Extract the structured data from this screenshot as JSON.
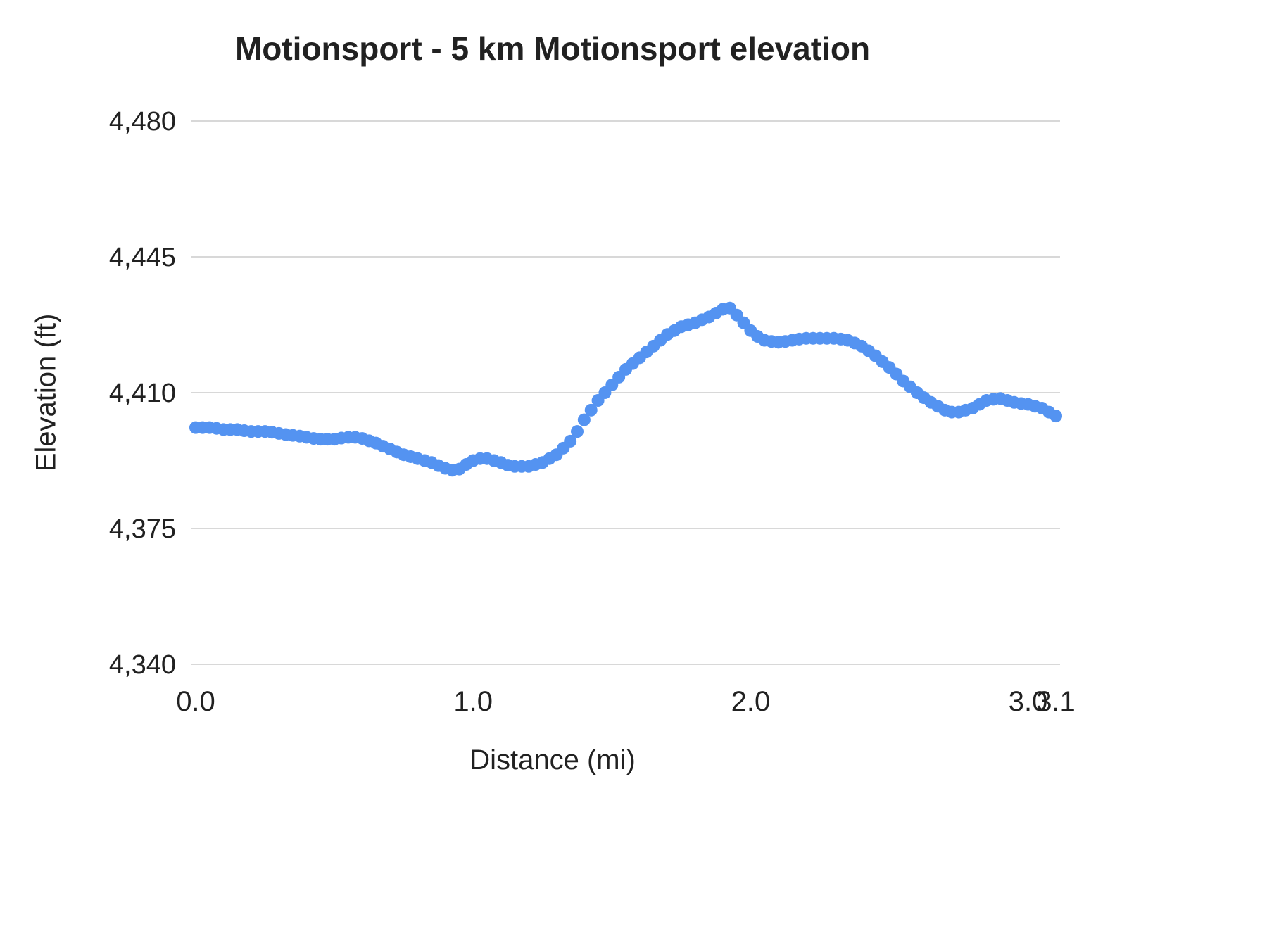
{
  "chart_data": {
    "type": "scatter",
    "title": "Motionsport - 5 km Motionsport elevation",
    "xlabel": "Distance (mi)",
    "ylabel": "Elevation (ft)",
    "x_range": [
      0.0,
      3.1
    ],
    "y_range": [
      4340,
      4480
    ],
    "grid": "horizontal",
    "legend": "none",
    "point_color": "#5493f1",
    "grid_color": "#d8d8d8",
    "text_color": "#212121",
    "y_ticks": [
      {
        "value": 4340,
        "label": "4,340"
      },
      {
        "value": 4375,
        "label": "4,375"
      },
      {
        "value": 4410,
        "label": "4,410"
      },
      {
        "value": 4445,
        "label": "4,445"
      },
      {
        "value": 4480,
        "label": "4,480"
      }
    ],
    "x_ticks": [
      {
        "value": 0.0,
        "label": "0.0"
      },
      {
        "value": 1.0,
        "label": "1.0"
      },
      {
        "value": 2.0,
        "label": "2.0"
      },
      {
        "value": 3.0,
        "label": "3.0"
      },
      {
        "value": 3.1,
        "label": "3.1"
      }
    ],
    "series": [
      {
        "name": "elevation",
        "points": [
          [
            0.0,
            4401.0
          ],
          [
            0.025,
            4401.0
          ],
          [
            0.05,
            4401.0
          ],
          [
            0.075,
            4400.8
          ],
          [
            0.1,
            4400.5
          ],
          [
            0.125,
            4400.5
          ],
          [
            0.15,
            4400.5
          ],
          [
            0.175,
            4400.2
          ],
          [
            0.2,
            4400.0
          ],
          [
            0.225,
            4400.0
          ],
          [
            0.25,
            4400.0
          ],
          [
            0.275,
            4399.8
          ],
          [
            0.3,
            4399.5
          ],
          [
            0.325,
            4399.2
          ],
          [
            0.35,
            4399.0
          ],
          [
            0.375,
            4398.8
          ],
          [
            0.4,
            4398.5
          ],
          [
            0.425,
            4398.2
          ],
          [
            0.45,
            4398.0
          ],
          [
            0.475,
            4398.0
          ],
          [
            0.5,
            4398.0
          ],
          [
            0.525,
            4398.3
          ],
          [
            0.55,
            4398.5
          ],
          [
            0.575,
            4398.5
          ],
          [
            0.6,
            4398.2
          ],
          [
            0.625,
            4397.6
          ],
          [
            0.65,
            4397.0
          ],
          [
            0.675,
            4396.2
          ],
          [
            0.7,
            4395.5
          ],
          [
            0.725,
            4394.7
          ],
          [
            0.75,
            4394.0
          ],
          [
            0.775,
            4393.5
          ],
          [
            0.8,
            4393.0
          ],
          [
            0.825,
            4392.5
          ],
          [
            0.85,
            4392.0
          ],
          [
            0.875,
            4391.2
          ],
          [
            0.9,
            4390.5
          ],
          [
            0.925,
            4390.0
          ],
          [
            0.95,
            4390.3
          ],
          [
            0.975,
            4391.5
          ],
          [
            1.0,
            4392.5
          ],
          [
            1.025,
            4393.0
          ],
          [
            1.05,
            4393.0
          ],
          [
            1.075,
            4392.5
          ],
          [
            1.1,
            4392.0
          ],
          [
            1.125,
            4391.3
          ],
          [
            1.15,
            4391.0
          ],
          [
            1.175,
            4391.0
          ],
          [
            1.2,
            4391.0
          ],
          [
            1.225,
            4391.5
          ],
          [
            1.25,
            4392.0
          ],
          [
            1.275,
            4393.0
          ],
          [
            1.3,
            4394.0
          ],
          [
            1.325,
            4395.7
          ],
          [
            1.35,
            4397.5
          ],
          [
            1.375,
            4400.0
          ],
          [
            1.4,
            4403.0
          ],
          [
            1.425,
            4405.5
          ],
          [
            1.45,
            4408.0
          ],
          [
            1.475,
            4410.0
          ],
          [
            1.5,
            4412.0
          ],
          [
            1.525,
            4414.0
          ],
          [
            1.55,
            4416.0
          ],
          [
            1.575,
            4417.5
          ],
          [
            1.6,
            4419.0
          ],
          [
            1.625,
            4420.5
          ],
          [
            1.65,
            4422.0
          ],
          [
            1.675,
            4423.5
          ],
          [
            1.7,
            4425.0
          ],
          [
            1.725,
            4426.0
          ],
          [
            1.75,
            4427.0
          ],
          [
            1.775,
            4427.5
          ],
          [
            1.8,
            4428.0
          ],
          [
            1.825,
            4428.8
          ],
          [
            1.85,
            4429.5
          ],
          [
            1.875,
            4430.5
          ],
          [
            1.9,
            4431.5
          ],
          [
            1.925,
            4431.8
          ],
          [
            1.95,
            4430.0
          ],
          [
            1.975,
            4428.0
          ],
          [
            2.0,
            4426.0
          ],
          [
            2.025,
            4424.5
          ],
          [
            2.05,
            4423.5
          ],
          [
            2.075,
            4423.2
          ],
          [
            2.1,
            4423.0
          ],
          [
            2.125,
            4423.2
          ],
          [
            2.15,
            4423.5
          ],
          [
            2.175,
            4423.8
          ],
          [
            2.2,
            4424.0
          ],
          [
            2.225,
            4424.0
          ],
          [
            2.25,
            4424.0
          ],
          [
            2.275,
            4424.0
          ],
          [
            2.3,
            4424.0
          ],
          [
            2.325,
            4423.8
          ],
          [
            2.35,
            4423.5
          ],
          [
            2.375,
            4422.8
          ],
          [
            2.4,
            4422.0
          ],
          [
            2.425,
            4420.8
          ],
          [
            2.45,
            4419.5
          ],
          [
            2.475,
            4418.0
          ],
          [
            2.5,
            4416.5
          ],
          [
            2.525,
            4414.8
          ],
          [
            2.55,
            4413.0
          ],
          [
            2.575,
            4411.5
          ],
          [
            2.6,
            4410.0
          ],
          [
            2.625,
            4408.7
          ],
          [
            2.65,
            4407.5
          ],
          [
            2.675,
            4406.5
          ],
          [
            2.7,
            4405.5
          ],
          [
            2.725,
            4405.0
          ],
          [
            2.75,
            4405.0
          ],
          [
            2.775,
            4405.5
          ],
          [
            2.8,
            4406.0
          ],
          [
            2.825,
            4407.0
          ],
          [
            2.85,
            4408.0
          ],
          [
            2.875,
            4408.3
          ],
          [
            2.9,
            4408.5
          ],
          [
            2.925,
            4408.0
          ],
          [
            2.95,
            4407.5
          ],
          [
            2.975,
            4407.2
          ],
          [
            3.0,
            4407.0
          ],
          [
            3.025,
            4406.5
          ],
          [
            3.05,
            4406.0
          ],
          [
            3.075,
            4405.0
          ],
          [
            3.1,
            4404.0
          ]
        ]
      }
    ]
  }
}
